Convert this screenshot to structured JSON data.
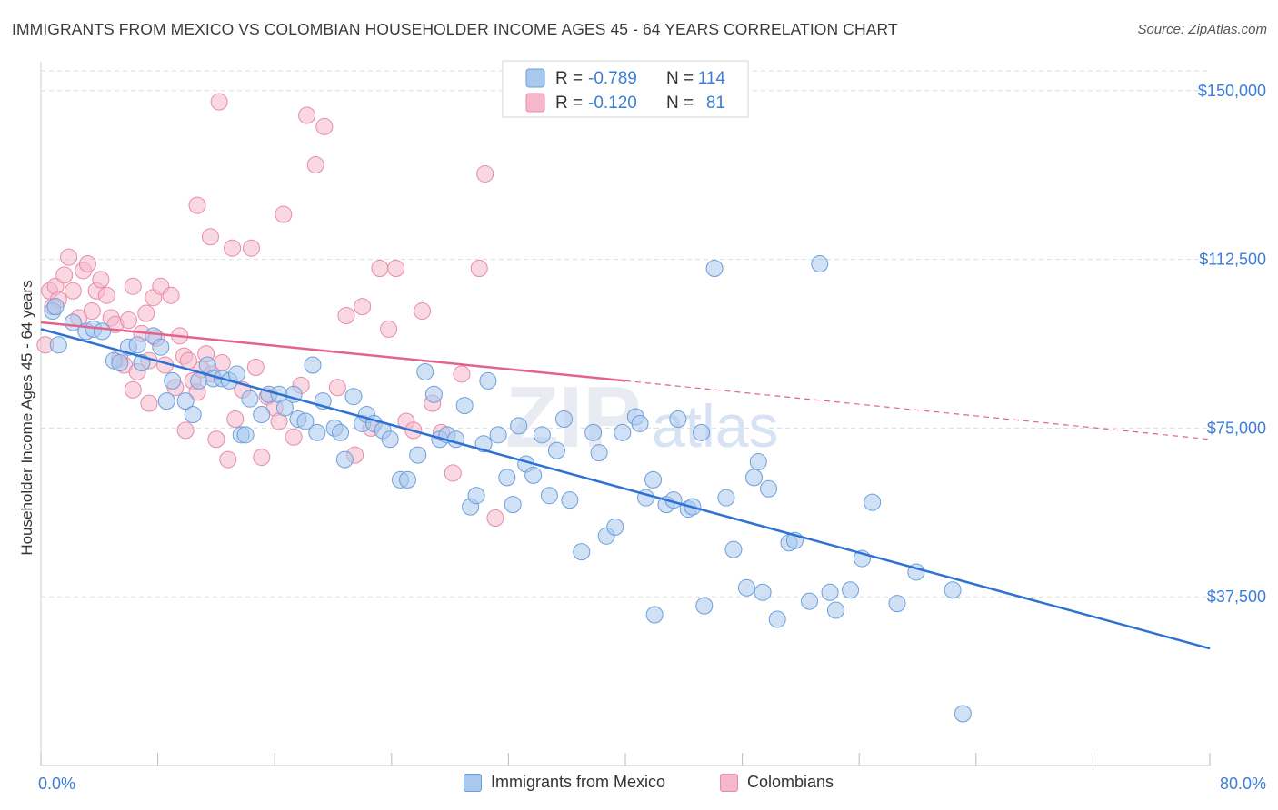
{
  "title": "IMMIGRANTS FROM MEXICO VS COLOMBIAN HOUSEHOLDER INCOME AGES 45 - 64 YEARS CORRELATION CHART",
  "source": "Source: ZipAtlas.com",
  "watermark": {
    "zip": "ZIP",
    "atlas": "atlas"
  },
  "colors": {
    "blue_fill": "#a9c8ee",
    "blue_stroke": "#6a9fdc",
    "blue_line": "#2c72d4",
    "pink_fill": "#f5b8cb",
    "pink_stroke": "#e88aa8",
    "pink_line": "#e4628e",
    "value_text": "#3b7dd8",
    "grid": "#dddddd"
  },
  "legend_top": {
    "rows": [
      {
        "r_label": "R =",
        "r_value": "-0.789",
        "n_label": "N =",
        "n_value": "114"
      },
      {
        "r_label": "R =",
        "r_value": "-0.120",
        "n_label": "N =",
        "n_value": "81"
      }
    ]
  },
  "legend_bottom": [
    {
      "label": "Immigrants from Mexico"
    },
    {
      "label": "Colombians"
    }
  ],
  "chart_data": {
    "type": "scatter",
    "title": "IMMIGRANTS FROM MEXICO VS COLOMBIAN HOUSEHOLDER INCOME AGES 45 - 64 YEARS CORRELATION CHART",
    "xlabel": "",
    "ylabel": "Householder Income Ages 45 - 64 years",
    "xlim": [
      0,
      80
    ],
    "ylim": [
      0,
      155000
    ],
    "x_tick_labels": [
      "0.0%",
      "80.0%"
    ],
    "y_ticks": [
      37500,
      75000,
      112500,
      150000
    ],
    "y_tick_labels": [
      "$37,500",
      "$75,000",
      "$112,500",
      "$150,000"
    ],
    "grid": true,
    "legend_position": "top-center",
    "series": [
      {
        "name": "Immigrants from Mexico",
        "r": -0.789,
        "n": 114,
        "trend": {
          "x": [
            0,
            80
          ],
          "y": [
            97000,
            26000
          ],
          "solid_to": 80
        },
        "points": [
          [
            0.8,
            101000
          ],
          [
            1.0,
            102000
          ],
          [
            1.2,
            93500
          ],
          [
            2.2,
            98500
          ],
          [
            3.1,
            96500
          ],
          [
            3.6,
            97000
          ],
          [
            4.2,
            96500
          ],
          [
            5.0,
            90000
          ],
          [
            5.4,
            89500
          ],
          [
            6.0,
            93000
          ],
          [
            6.6,
            93500
          ],
          [
            6.9,
            89500
          ],
          [
            7.7,
            95500
          ],
          [
            8.2,
            93000
          ],
          [
            8.6,
            81000
          ],
          [
            9.0,
            85500
          ],
          [
            9.9,
            81000
          ],
          [
            10.4,
            78000
          ],
          [
            10.8,
            85500
          ],
          [
            11.4,
            89000
          ],
          [
            11.8,
            86000
          ],
          [
            12.4,
            86000
          ],
          [
            12.9,
            85500
          ],
          [
            13.4,
            87000
          ],
          [
            13.7,
            73500
          ],
          [
            14.0,
            73500
          ],
          [
            14.3,
            81500
          ],
          [
            15.1,
            78000
          ],
          [
            15.6,
            82500
          ],
          [
            16.3,
            82500
          ],
          [
            16.7,
            79500
          ],
          [
            17.3,
            82500
          ],
          [
            17.6,
            77000
          ],
          [
            18.1,
            76500
          ],
          [
            18.6,
            89000
          ],
          [
            18.9,
            74000
          ],
          [
            19.3,
            81000
          ],
          [
            20.1,
            75000
          ],
          [
            20.5,
            74000
          ],
          [
            20.8,
            68000
          ],
          [
            21.4,
            82000
          ],
          [
            22.0,
            76000
          ],
          [
            22.3,
            78000
          ],
          [
            22.8,
            76000
          ],
          [
            23.4,
            74500
          ],
          [
            23.9,
            72500
          ],
          [
            24.6,
            63500
          ],
          [
            25.1,
            63500
          ],
          [
            25.8,
            69000
          ],
          [
            26.3,
            87500
          ],
          [
            26.9,
            82500
          ],
          [
            27.3,
            72500
          ],
          [
            27.8,
            73500
          ],
          [
            28.4,
            72500
          ],
          [
            29.0,
            80000
          ],
          [
            29.4,
            57500
          ],
          [
            29.8,
            60000
          ],
          [
            30.3,
            71500
          ],
          [
            30.6,
            85500
          ],
          [
            31.3,
            73500
          ],
          [
            31.9,
            64000
          ],
          [
            32.3,
            58000
          ],
          [
            32.7,
            75500
          ],
          [
            33.2,
            67000
          ],
          [
            33.7,
            64500
          ],
          [
            34.3,
            73500
          ],
          [
            34.8,
            60000
          ],
          [
            35.3,
            70000
          ],
          [
            35.8,
            77000
          ],
          [
            36.2,
            59000
          ],
          [
            37.0,
            47500
          ],
          [
            37.8,
            74000
          ],
          [
            38.2,
            69500
          ],
          [
            38.7,
            51000
          ],
          [
            39.3,
            53000
          ],
          [
            39.8,
            74000
          ],
          [
            40.7,
            77500
          ],
          [
            41.0,
            76000
          ],
          [
            41.4,
            59500
          ],
          [
            41.9,
            63500
          ],
          [
            42.8,
            58000
          ],
          [
            43.3,
            59000
          ],
          [
            43.6,
            77000
          ],
          [
            44.3,
            57000
          ],
          [
            44.6,
            57500
          ],
          [
            45.2,
            74000
          ],
          [
            45.4,
            35500
          ],
          [
            46.1,
            110500
          ],
          [
            46.9,
            59500
          ],
          [
            47.4,
            48000
          ],
          [
            48.3,
            39500
          ],
          [
            48.8,
            64000
          ],
          [
            49.1,
            67500
          ],
          [
            49.4,
            38500
          ],
          [
            49.8,
            61500
          ],
          [
            50.4,
            32500
          ],
          [
            51.2,
            49500
          ],
          [
            51.6,
            50000
          ],
          [
            52.6,
            36500
          ],
          [
            53.3,
            111500
          ],
          [
            54.0,
            38500
          ],
          [
            54.4,
            34500
          ],
          [
            55.4,
            39000
          ],
          [
            56.2,
            46000
          ],
          [
            56.9,
            58500
          ],
          [
            58.6,
            36000
          ],
          [
            59.9,
            43000
          ],
          [
            62.4,
            39000
          ],
          [
            63.1,
            11500
          ],
          [
            42.0,
            33500
          ]
        ]
      },
      {
        "name": "Colombians",
        "r": -0.12,
        "n": 81,
        "trend": {
          "x": [
            0,
            80
          ],
          "y": [
            98500,
            72500
          ],
          "solid_to": 40
        },
        "points": [
          [
            0.3,
            93500
          ],
          [
            0.6,
            105500
          ],
          [
            0.8,
            102000
          ],
          [
            1.0,
            106500
          ],
          [
            1.2,
            103500
          ],
          [
            1.6,
            109000
          ],
          [
            1.9,
            113000
          ],
          [
            2.2,
            105500
          ],
          [
            2.6,
            99500
          ],
          [
            2.9,
            110000
          ],
          [
            3.2,
            111500
          ],
          [
            3.5,
            101000
          ],
          [
            3.8,
            105500
          ],
          [
            4.1,
            108000
          ],
          [
            4.5,
            104500
          ],
          [
            4.8,
            99500
          ],
          [
            5.1,
            98000
          ],
          [
            5.4,
            90500
          ],
          [
            5.7,
            89000
          ],
          [
            6.0,
            99000
          ],
          [
            6.3,
            106500
          ],
          [
            6.6,
            87500
          ],
          [
            6.9,
            96000
          ],
          [
            7.2,
            100500
          ],
          [
            7.4,
            90000
          ],
          [
            7.7,
            104000
          ],
          [
            7.9,
            95000
          ],
          [
            8.2,
            106500
          ],
          [
            8.5,
            89000
          ],
          [
            8.9,
            104500
          ],
          [
            9.2,
            84000
          ],
          [
            9.5,
            95500
          ],
          [
            9.8,
            91000
          ],
          [
            10.1,
            90000
          ],
          [
            10.4,
            85500
          ],
          [
            10.7,
            83000
          ],
          [
            11.0,
            88000
          ],
          [
            11.3,
            91500
          ],
          [
            11.7,
            87000
          ],
          [
            12.0,
            72500
          ],
          [
            12.4,
            89500
          ],
          [
            12.8,
            68000
          ],
          [
            13.3,
            77000
          ],
          [
            13.8,
            83500
          ],
          [
            14.4,
            115000
          ],
          [
            15.1,
            68500
          ],
          [
            15.5,
            82000
          ],
          [
            16.0,
            79500
          ],
          [
            16.3,
            76500
          ],
          [
            16.6,
            122500
          ],
          [
            17.3,
            73000
          ],
          [
            17.8,
            84500
          ],
          [
            18.2,
            144500
          ],
          [
            18.8,
            133500
          ],
          [
            19.4,
            142000
          ],
          [
            20.3,
            84000
          ],
          [
            20.9,
            100000
          ],
          [
            21.5,
            69000
          ],
          [
            22.0,
            102000
          ],
          [
            22.6,
            75000
          ],
          [
            23.2,
            110500
          ],
          [
            23.8,
            97000
          ],
          [
            24.3,
            110500
          ],
          [
            25.0,
            76500
          ],
          [
            25.5,
            74500
          ],
          [
            26.1,
            101000
          ],
          [
            26.8,
            80500
          ],
          [
            27.4,
            74000
          ],
          [
            28.2,
            65000
          ],
          [
            28.8,
            87000
          ],
          [
            30.4,
            131500
          ],
          [
            31.1,
            55000
          ],
          [
            6.3,
            83500
          ],
          [
            7.4,
            80500
          ],
          [
            9.9,
            74500
          ],
          [
            10.7,
            124500
          ],
          [
            11.6,
            117500
          ],
          [
            12.2,
            147500
          ],
          [
            13.1,
            115000
          ],
          [
            14.7,
            88500
          ],
          [
            30.0,
            110500
          ]
        ]
      }
    ]
  }
}
